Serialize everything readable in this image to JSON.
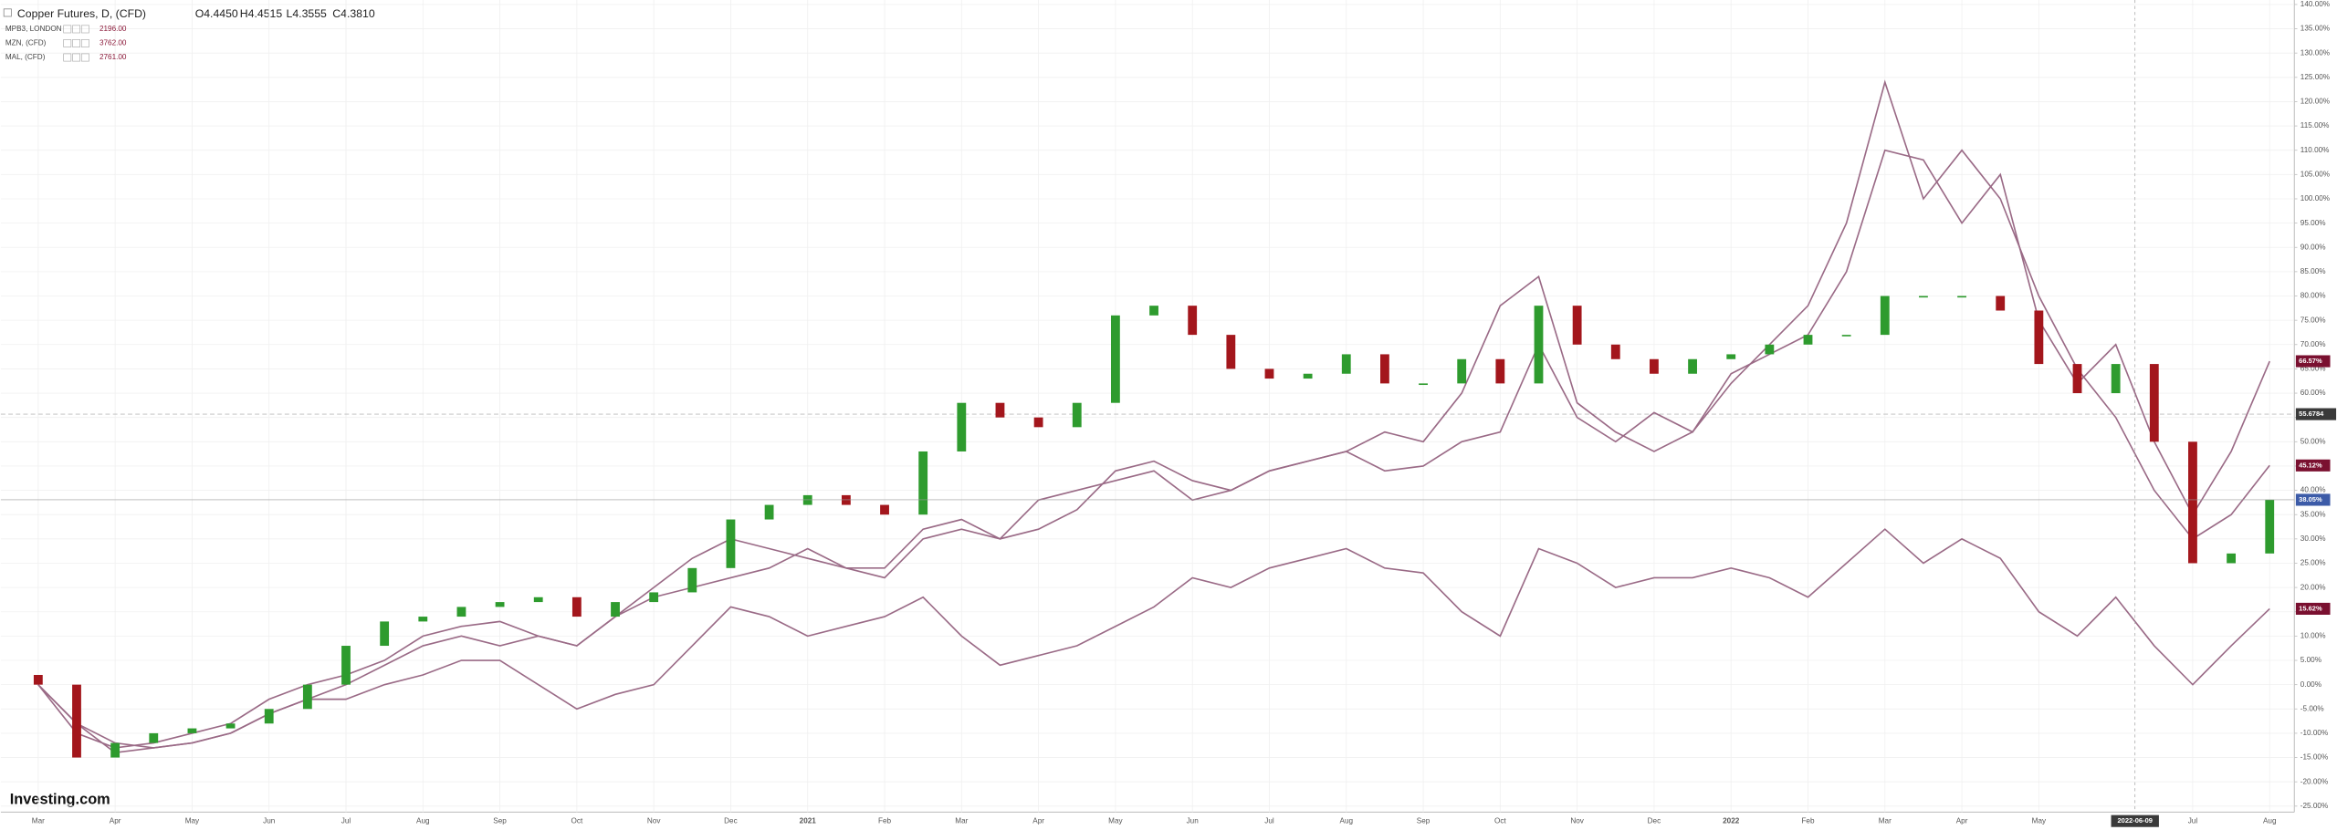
{
  "chart_data": {
    "type": "candlestick",
    "title": "Copper Futures, D, (CFD)",
    "ohlc": [
      "O4.4450",
      "H4.4515",
      "L4.3555",
      "C4.3810"
    ],
    "logo": "Investing.com",
    "crosshair_label": "2022-06-09",
    "price_line": {
      "value": 55.6784,
      "label": "55.6784"
    },
    "categories": [
      "Mar",
      null,
      "Apr",
      null,
      "May",
      null,
      "Jun",
      null,
      "Jul",
      null,
      "Aug",
      null,
      "Sep",
      null,
      "Oct",
      null,
      "Nov",
      null,
      "Dec",
      null,
      "2021",
      null,
      "Feb",
      null,
      "Mar",
      null,
      "Apr",
      null,
      "May",
      null,
      "Jun",
      null,
      "Jul",
      null,
      "Aug",
      null,
      "Sep",
      null,
      "Oct",
      null,
      "Nov",
      null,
      "Dec",
      null,
      "2022",
      null,
      "Feb",
      null,
      "Mar",
      null,
      "Apr",
      null,
      "May",
      null,
      null,
      null,
      "Jul",
      null,
      "Aug"
    ],
    "ylim": [
      -25,
      140
    ],
    "yticks": [
      {
        "value": 140,
        "label": "140.00%"
      },
      {
        "value": 135,
        "label": "135.00%"
      },
      {
        "value": 130,
        "label": "130.00%"
      },
      {
        "value": 125,
        "label": "125.00%"
      },
      {
        "value": 120,
        "label": "120.00%"
      },
      {
        "value": 115,
        "label": "115.00%"
      },
      {
        "value": 110,
        "label": "110.00%"
      },
      {
        "value": 105,
        "label": "105.00%"
      },
      {
        "value": 100,
        "label": "100.00%"
      },
      {
        "value": 95,
        "label": "95.00%"
      },
      {
        "value": 90,
        "label": "90.00%"
      },
      {
        "value": 85,
        "label": "85.00%"
      },
      {
        "value": 80,
        "label": "80.00%"
      },
      {
        "value": 75,
        "label": "75.00%"
      },
      {
        "value": 70,
        "label": "70.00%"
      },
      {
        "value": 65,
        "label": "65.00%"
      },
      {
        "value": 60,
        "label": "60.00%"
      },
      {
        "value": 55,
        "label": "55.00%"
      },
      {
        "value": 50,
        "label": "50.00%"
      },
      {
        "value": 45,
        "label": "45.00%"
      },
      {
        "value": 40,
        "label": "40.00%"
      },
      {
        "value": 35,
        "label": "35.00%"
      },
      {
        "value": 30,
        "label": "30.00%"
      },
      {
        "value": 25,
        "label": "25.00%"
      },
      {
        "value": 20,
        "label": "20.00%"
      },
      {
        "value": 15,
        "label": "15.00%"
      },
      {
        "value": 10,
        "label": "10.00%"
      },
      {
        "value": 5,
        "label": "5.00%"
      },
      {
        "value": 0,
        "label": "0.00%"
      },
      {
        "value": -5,
        "label": "-5.00%"
      },
      {
        "value": -10,
        "label": "-10.00%"
      },
      {
        "value": -15,
        "label": "-15.00%"
      },
      {
        "value": -20,
        "label": "-20.00%"
      },
      {
        "value": -25,
        "label": "-25.00%"
      }
    ],
    "grid": true,
    "series": [
      {
        "name": "Copper Futures, D, (CFD)",
        "up_color": "#2e9b2e",
        "down_color": "#a3161c",
        "tag_color": "#3c5ba8",
        "open": [
          2,
          0,
          -15,
          -12,
          -10,
          -9,
          -8,
          -5,
          0,
          8,
          13,
          14,
          16,
          17,
          18,
          14,
          17,
          19,
          24,
          34,
          37,
          39,
          37,
          35,
          48,
          58,
          55,
          53,
          58,
          76,
          78,
          72,
          65,
          63,
          64,
          68,
          62,
          62,
          67,
          62,
          78,
          70,
          67,
          64,
          67,
          68,
          70,
          72,
          72,
          80,
          80,
          80,
          77,
          66,
          60,
          66,
          50,
          25,
          27
        ],
        "close": [
          0,
          -15,
          -12,
          -10,
          -9,
          -8,
          -5,
          0,
          8,
          13,
          14,
          16,
          17,
          18,
          14,
          17,
          19,
          24,
          34,
          37,
          39,
          37,
          35,
          48,
          58,
          55,
          53,
          58,
          76,
          78,
          72,
          65,
          63,
          64,
          68,
          62,
          62,
          67,
          62,
          78,
          70,
          67,
          64,
          67,
          68,
          70,
          72,
          72,
          80,
          80,
          80,
          77,
          66,
          60,
          66,
          50,
          25,
          27,
          38.05
        ],
        "value_labels": [
          null,
          null,
          null,
          null,
          null,
          null,
          null,
          null,
          null,
          null,
          null,
          null,
          null,
          null,
          null,
          null,
          null,
          null,
          null,
          null,
          null,
          null,
          null,
          null,
          null,
          null,
          null,
          null,
          null,
          null,
          null,
          null,
          null,
          null,
          null,
          null,
          null,
          null,
          null,
          null,
          null,
          null,
          null,
          null,
          null,
          null,
          null,
          null,
          null,
          null,
          null,
          null,
          null,
          null,
          null,
          null,
          null,
          null,
          "38.05%"
        ]
      },
      {
        "name": "MPB3, LONDON",
        "legend_value": "2196.00",
        "color": "#9a6a86",
        "tag_color": "#7a1030",
        "values": [
          0,
          -8,
          -12,
          -13,
          -12,
          -10,
          -6,
          -3,
          -3,
          0,
          2,
          5,
          5,
          0,
          -5,
          -2,
          0,
          8,
          16,
          14,
          10,
          12,
          14,
          18,
          10,
          4,
          6,
          8,
          12,
          16,
          22,
          20,
          24,
          26,
          28,
          24,
          23,
          15,
          10,
          28,
          25,
          20,
          22,
          22,
          24,
          22,
          18,
          25,
          32,
          25,
          30,
          26,
          15,
          10,
          18,
          8,
          0,
          8,
          15.62
        ],
        "value_labels": [
          null,
          null,
          null,
          null,
          null,
          null,
          null,
          null,
          null,
          null,
          null,
          null,
          null,
          null,
          null,
          null,
          null,
          null,
          null,
          null,
          null,
          null,
          null,
          null,
          null,
          null,
          null,
          null,
          null,
          null,
          null,
          null,
          null,
          null,
          null,
          null,
          null,
          null,
          null,
          null,
          null,
          null,
          null,
          null,
          null,
          null,
          null,
          null,
          null,
          null,
          null,
          null,
          null,
          null,
          null,
          null,
          null,
          null,
          "15.62%"
        ]
      },
      {
        "name": "MZN, (CFD)",
        "legend_value": "3762.00",
        "color": "#9a6a86",
        "tag_color": "#7a1030",
        "values": [
          0,
          -10,
          -13,
          -12,
          -10,
          -8,
          -3,
          0,
          2,
          5,
          10,
          12,
          13,
          10,
          8,
          14,
          20,
          26,
          30,
          28,
          26,
          24,
          24,
          32,
          34,
          30,
          32,
          36,
          44,
          46,
          42,
          40,
          44,
          46,
          48,
          44,
          45,
          50,
          52,
          70,
          55,
          50,
          56,
          52,
          64,
          68,
          72,
          85,
          110,
          108,
          95,
          105,
          75,
          62,
          70,
          50,
          35,
          48,
          66.57
        ],
        "value_labels": [
          null,
          null,
          null,
          null,
          null,
          null,
          null,
          null,
          null,
          null,
          null,
          null,
          null,
          null,
          null,
          null,
          null,
          null,
          null,
          null,
          null,
          null,
          null,
          null,
          null,
          null,
          null,
          null,
          null,
          null,
          null,
          null,
          null,
          null,
          null,
          null,
          null,
          null,
          null,
          null,
          null,
          null,
          null,
          null,
          null,
          null,
          null,
          null,
          null,
          null,
          null,
          null,
          null,
          null,
          null,
          null,
          null,
          null,
          "66.57%"
        ]
      },
      {
        "name": "MAL, (CFD)",
        "legend_value": "2761.00",
        "color": "#9a6a86",
        "tag_color": "#7a1030",
        "values": [
          0,
          -8,
          -14,
          -13,
          -12,
          -10,
          -6,
          -3,
          0,
          4,
          8,
          10,
          8,
          10,
          8,
          14,
          18,
          20,
          22,
          24,
          28,
          24,
          22,
          30,
          32,
          30,
          38,
          40,
          42,
          44,
          38,
          40,
          44,
          46,
          48,
          52,
          50,
          60,
          78,
          84,
          58,
          52,
          48,
          52,
          62,
          70,
          78,
          95,
          124,
          100,
          110,
          100,
          80,
          65,
          55,
          40,
          30,
          35,
          45.12
        ],
        "value_labels": [
          null,
          null,
          null,
          null,
          null,
          null,
          null,
          null,
          null,
          null,
          null,
          null,
          null,
          null,
          null,
          null,
          null,
          null,
          null,
          null,
          null,
          null,
          null,
          null,
          null,
          null,
          null,
          null,
          null,
          null,
          null,
          null,
          null,
          null,
          null,
          null,
          null,
          null,
          null,
          null,
          null,
          null,
          null,
          null,
          null,
          null,
          null,
          null,
          null,
          null,
          null,
          null,
          null,
          null,
          null,
          null,
          null,
          null,
          "45.12%"
        ]
      }
    ]
  }
}
